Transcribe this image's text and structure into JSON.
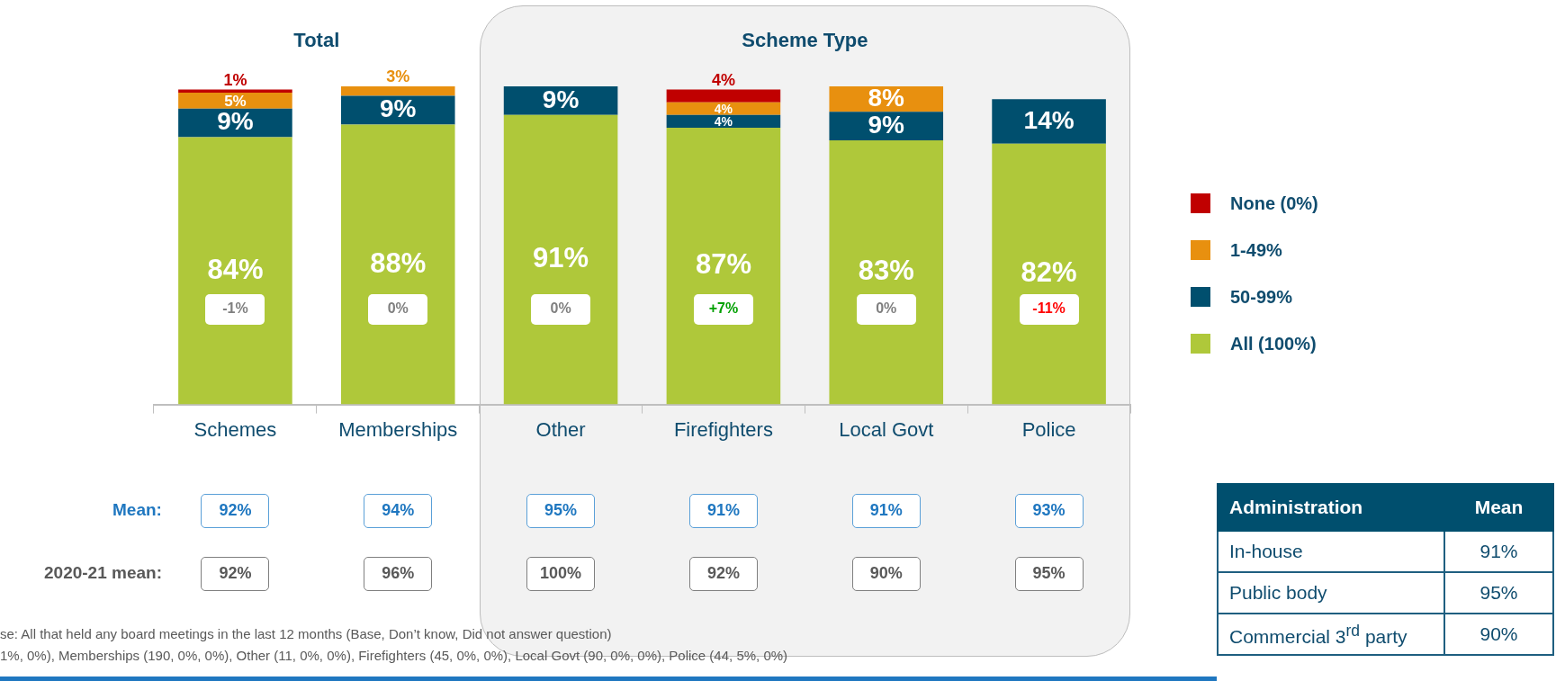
{
  "chart_data": {
    "type": "bar",
    "stacked": true,
    "tick_labels": "x",
    "grid": false,
    "legend": "right",
    "categories": [
      "Schemes",
      "Memberships",
      "Other",
      "Firefighters",
      "Local Govt",
      "Police"
    ],
    "series": [
      {
        "name": "All (100%)",
        "color": "#afc83a",
        "values": [
          84,
          88,
          91,
          87,
          83,
          82
        ],
        "value_labels": [
          "84%",
          "88%",
          "91%",
          "87%",
          "83%",
          "82%"
        ]
      },
      {
        "name": "50-99%",
        "color": "#004f6e",
        "values": [
          9,
          9,
          9,
          4,
          9,
          14
        ],
        "value_labels": [
          "9%",
          "9%",
          "9%",
          "4%",
          "9%",
          "14%"
        ]
      },
      {
        "name": "1-49%",
        "color": "#e8900f",
        "values": [
          5,
          3,
          null,
          4,
          8,
          null
        ],
        "value_labels": [
          "5%",
          "3%",
          null,
          "4%",
          "8%",
          null
        ]
      },
      {
        "name": "None (0%)",
        "color": "#c00000",
        "values": [
          1,
          null,
          null,
          4,
          null,
          null
        ],
        "value_labels": [
          "1%",
          null,
          null,
          "4%",
          null,
          null
        ]
      }
    ],
    "bands": [
      {
        "axis": "x",
        "from": "Other",
        "to": "Police",
        "label": "Scheme Type",
        "color": "#f2f2f2"
      }
    ],
    "annotations": [
      "Total",
      "Mean:",
      "2020-21 mean:",
      "Administration",
      "Mean",
      "In-house",
      "91%",
      "Public body",
      "95%",
      "Commercial 3$^{rd}$ party",
      "90%",
      "se: All that held any board meetings in the last 12 months (Base, Don’t know, Did not answer question)",
      "1%, 0%), Memberships (190, 0%, 0%), Other (11, 0%, 0%), Firefighters (45, 0%, 0%), Local Govt (90, 0%, 0%), Police (44, 5%, 0%)",
      "-1%",
      "0%",
      "0%",
      "+7%",
      "0%",
      "-11%",
      "92%",
      "94%",
      "95%",
      "91%",
      "91%",
      "93%",
      "92%",
      "96%",
      "100%",
      "92%",
      "90%",
      "95%"
    ]
  }
}
